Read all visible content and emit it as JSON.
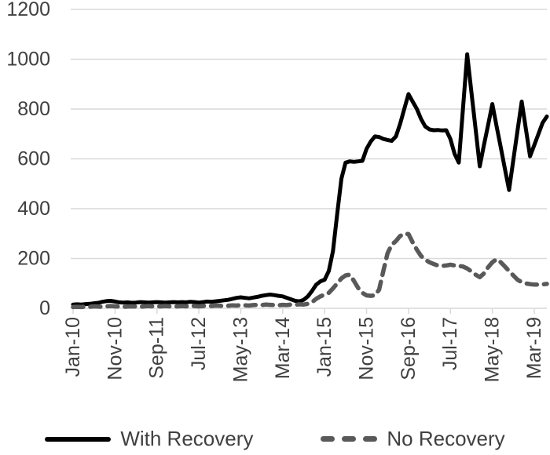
{
  "colors": {
    "with_recovery_line": "#000000",
    "no_recovery_line": "#595959",
    "grid": "#d9d9d9",
    "axis_text": "#404040",
    "tick_mark": "#d9d9d9",
    "background": "#ffffff"
  },
  "legend": {
    "items": [
      {
        "label": "With Recovery",
        "swatch": "solid-black-line"
      },
      {
        "label": "No Recovery",
        "swatch": "dashed-gray-line"
      }
    ]
  },
  "chart_data": {
    "type": "line",
    "title": "",
    "xlabel": "",
    "ylabel": "",
    "ylim": [
      0,
      1200
    ],
    "y_ticks": [
      0,
      200,
      400,
      600,
      800,
      1000,
      1200
    ],
    "grid": "horizontal",
    "legend_position": "bottom",
    "x_tick_labels": [
      "Jan-10",
      "Nov-10",
      "Sep-11",
      "Jul-12",
      "May-13",
      "Mar-14",
      "Jan-15",
      "Nov-15",
      "Sep-16",
      "Jul-17",
      "May-18",
      "Mar-19"
    ],
    "x_tick_interval_months": 10,
    "categories": [
      "Jan-10",
      "Feb-10",
      "Mar-10",
      "Apr-10",
      "May-10",
      "Jun-10",
      "Jul-10",
      "Aug-10",
      "Sep-10",
      "Oct-10",
      "Nov-10",
      "Dec-10",
      "Jan-11",
      "Feb-11",
      "Mar-11",
      "Apr-11",
      "May-11",
      "Jun-11",
      "Jul-11",
      "Aug-11",
      "Sep-11",
      "Oct-11",
      "Nov-11",
      "Dec-11",
      "Jan-12",
      "Feb-12",
      "Mar-12",
      "Apr-12",
      "May-12",
      "Jun-12",
      "Jul-12",
      "Aug-12",
      "Sep-12",
      "Oct-12",
      "Nov-12",
      "Dec-12",
      "Jan-13",
      "Feb-13",
      "Mar-13",
      "Apr-13",
      "May-13",
      "Jun-13",
      "Jul-13",
      "Aug-13",
      "Sep-13",
      "Oct-13",
      "Nov-13",
      "Dec-13",
      "Jan-14",
      "Feb-14",
      "Mar-14",
      "Apr-14",
      "May-14",
      "Jun-14",
      "Jul-14",
      "Aug-14",
      "Sep-14",
      "Oct-14",
      "Nov-14",
      "Dec-14",
      "Jan-15",
      "Feb-15",
      "Mar-15",
      "Apr-15",
      "May-15",
      "Jun-15",
      "Jul-15",
      "Aug-15",
      "Sep-15",
      "Oct-15",
      "Nov-15",
      "Dec-15",
      "Jan-16",
      "Feb-16",
      "Mar-16",
      "Apr-16",
      "May-16",
      "Jun-16",
      "Jul-16",
      "Aug-16",
      "Sep-16",
      "Oct-16",
      "Nov-16",
      "Dec-16",
      "Jan-17",
      "Feb-17",
      "Mar-17",
      "Apr-17",
      "May-17",
      "Jun-17",
      "Jul-17",
      "Aug-17",
      "Sep-17",
      "Oct-17",
      "Nov-17",
      "Dec-17",
      "Jan-18",
      "Feb-18",
      "Mar-18",
      "Apr-18",
      "May-18",
      "Jun-18",
      "Jul-18",
      "Aug-18",
      "Sep-18",
      "Oct-18",
      "Nov-18",
      "Dec-18",
      "Jan-19",
      "Feb-19",
      "Mar-19",
      "Apr-19",
      "May-19",
      "Jun-19"
    ],
    "series": [
      {
        "name": "With Recovery",
        "style": "solid",
        "color": "#000000",
        "values": [
          15,
          16,
          15,
          17,
          18,
          20,
          22,
          26,
          29,
          30,
          27,
          24,
          23,
          24,
          22,
          23,
          25,
          24,
          23,
          24,
          25,
          24,
          23,
          24,
          25,
          24,
          25,
          24,
          26,
          25,
          23,
          25,
          27,
          26,
          28,
          30,
          32,
          34,
          38,
          42,
          44,
          42,
          40,
          43,
          46,
          50,
          53,
          55,
          53,
          50,
          48,
          42,
          36,
          30,
          28,
          34,
          48,
          70,
          95,
          108,
          115,
          150,
          230,
          380,
          520,
          585,
          590,
          588,
          590,
          592,
          640,
          670,
          690,
          688,
          680,
          676,
          672,
          690,
          740,
          800,
          860,
          830,
          800,
          760,
          730,
          718,
          715,
          716,
          714,
          715,
          680,
          620,
          585,
          800,
          1020,
          870,
          720,
          570,
          655,
          737,
          820,
          733,
          647,
          560,
          475,
          595,
          712,
          830,
          720,
          610,
          655,
          700,
          745,
          770
        ]
      },
      {
        "name": "No Recovery",
        "style": "dashed",
        "color": "#595959",
        "values": [
          5,
          6,
          5,
          7,
          6,
          8,
          7,
          6,
          8,
          9,
          8,
          7,
          6,
          7,
          8,
          7,
          6,
          8,
          9,
          8,
          7,
          8,
          9,
          8,
          7,
          8,
          9,
          8,
          10,
          9,
          8,
          9,
          10,
          9,
          11,
          10,
          9,
          10,
          12,
          11,
          13,
          12,
          11,
          13,
          14,
          13,
          15,
          14,
          13,
          12,
          14,
          13,
          15,
          14,
          16,
          15,
          18,
          25,
          38,
          48,
          55,
          62,
          80,
          100,
          120,
          132,
          135,
          110,
          82,
          62,
          52,
          50,
          52,
          75,
          150,
          220,
          255,
          270,
          290,
          300,
          298,
          265,
          235,
          210,
          195,
          185,
          178,
          172,
          170,
          172,
          175,
          172,
          170,
          168,
          160,
          148,
          135,
          125,
          140,
          165,
          185,
          197,
          185,
          168,
          150,
          132,
          115,
          105,
          100,
          97,
          95,
          95,
          96,
          98
        ]
      }
    ]
  }
}
